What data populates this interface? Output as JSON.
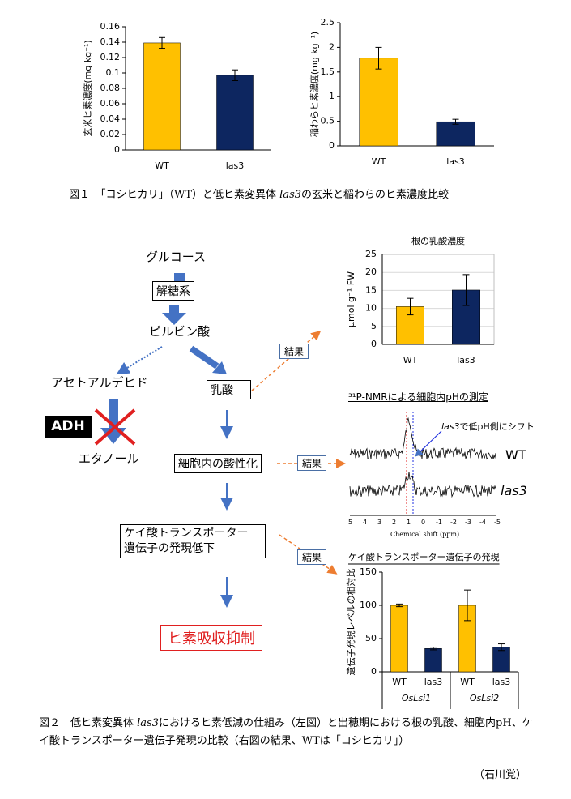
{
  "chart_data": [
    {
      "type": "bar",
      "ylabel": "玄米ヒ素濃度(mg kg⁻¹)",
      "categories": [
        "WT",
        "las3"
      ],
      "values": [
        0.139,
        0.097
      ],
      "errors": [
        0.007,
        0.007
      ],
      "colors": [
        "#ffc000",
        "#0d2660"
      ],
      "ylim": [
        0,
        0.16
      ],
      "yticks": [
        0,
        0.02,
        0.04,
        0.06,
        0.08,
        0.1,
        0.12,
        0.14,
        0.16
      ]
    },
    {
      "type": "bar",
      "ylabel": "稲わらヒ素濃度(mg kg⁻¹)",
      "categories": [
        "WT",
        "las3"
      ],
      "values": [
        1.78,
        0.49
      ],
      "errors": [
        0.22,
        0.05
      ],
      "colors": [
        "#ffc000",
        "#0d2660"
      ],
      "ylim": [
        0,
        2.5
      ],
      "yticks": [
        0,
        0.5,
        1,
        1.5,
        2,
        2.5
      ]
    },
    {
      "type": "bar",
      "title": "根の乳酸濃度",
      "ylabel": "μmol g⁻¹ FW",
      "categories": [
        "WT",
        "las3"
      ],
      "values": [
        10.5,
        15.1
      ],
      "errors": [
        2.3,
        4.3
      ],
      "colors": [
        "#ffc000",
        "#0d2660"
      ],
      "ylim": [
        0,
        25
      ],
      "yticks": [
        0,
        5,
        10,
        15,
        20,
        25
      ],
      "grid": true
    },
    {
      "type": "bar",
      "title": "ケイ酸トランスポーター遺伝子の発現",
      "ylabel": "遺伝子発現レベルの相対比",
      "categories": [
        "WT",
        "las3",
        "WT",
        "las3"
      ],
      "groups": [
        "OsLsi1",
        "OsLsi2"
      ],
      "values": [
        100,
        35,
        100,
        37
      ],
      "errors": [
        2,
        2,
        23,
        5
      ],
      "colors": [
        "#ffc000",
        "#0d2660",
        "#ffc000",
        "#0d2660"
      ],
      "ylim": [
        0,
        150
      ],
      "yticks": [
        0,
        50,
        100,
        150
      ]
    }
  ],
  "fig1": {
    "caption": [
      "図１　「コシヒカリ」（WT）と低ヒ素変異体 ",
      "las3",
      "の玄米と稲わらのヒ素濃度比較"
    ]
  },
  "diagram": {
    "glucose": "グルコース",
    "glycolysis": "解糖系",
    "pyruvate": "ピルビン酸",
    "acetaldehyde": "アセトアルデヒド",
    "lactate": "乳酸",
    "adh": "ADH",
    "ethanol": "エタノール",
    "acidification": "細胞内の酸性化",
    "transporter": [
      "ケイ酸トランスポーター",
      "遺伝子の発現低下"
    ],
    "suppression": "ヒ素吸収抑制",
    "result": [
      "結果",
      "結果",
      "結果"
    ]
  },
  "nmr": {
    "title": "³¹P-NMRによる細胞内pHの測定",
    "annotation": [
      "las3",
      "で低pH側にシフト"
    ],
    "labels": [
      "WT",
      "las3"
    ],
    "xlabel": "Chemical shift (ppm)",
    "xticks": [
      5,
      4,
      3,
      2,
      1,
      0,
      -1,
      -2,
      -3,
      -4,
      -5
    ]
  },
  "fig2": {
    "caption": [
      "図２　低ヒ素変異体 ",
      "las3",
      "におけるヒ素低減の仕組み（左図）と出穂期における根の乳酸、細胞内pH、ケイ酸トランスポーター遺伝子発現の比較（右図の結果、WTは「コシヒカリ」）"
    ]
  },
  "author": "（石川覚）"
}
